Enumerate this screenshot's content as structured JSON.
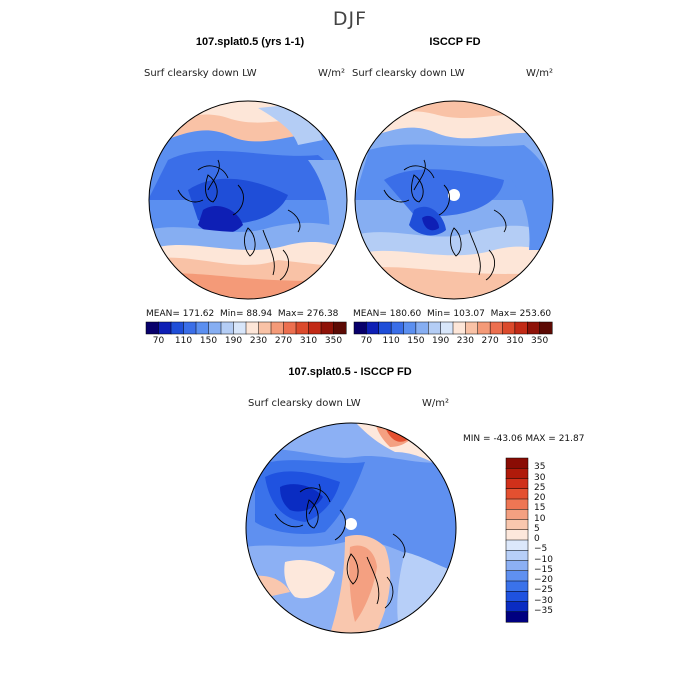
{
  "figure": {
    "season": "DJF",
    "colors": {
      "map_scale": [
        "#08006b",
        "#0e1fb5",
        "#1f4ed8",
        "#3a6ee8",
        "#5b8ff0",
        "#86aef2",
        "#b4cdf5",
        "#d8e6fa",
        "#fde6d8",
        "#f9c2a6",
        "#f49a78",
        "#ec6f4f",
        "#db4a2c",
        "#c22a16",
        "#8e1208",
        "#5c0a04"
      ],
      "diff_scale": [
        "#000080",
        "#0a2cc2",
        "#1f52e0",
        "#3a72ea",
        "#5f90f0",
        "#8cb0f4",
        "#b7cff8",
        "#dce8fb",
        "#fde8dc",
        "#f9c7ae",
        "#f4a081",
        "#ee7654",
        "#e45030",
        "#d0301a",
        "#b01a0a",
        "#8a0c04"
      ]
    },
    "panels": [
      {
        "id": "model",
        "title": "107.splat0.5 (yrs 1-1)",
        "variable": "Surf clearsky down LW",
        "units": "W/m²",
        "stats": {
          "mean_label": "MEAN=",
          "mean": "171.62",
          "min_label": "Min=",
          "min": "88.94",
          "max_label": "Max=",
          "max": "276.38"
        }
      },
      {
        "id": "obs",
        "title": "ISCCP FD",
        "variable": "Surf clearsky down LW",
        "units": "W/m²",
        "stats": {
          "mean_label": "MEAN=",
          "mean": "180.60",
          "min_label": "Min=",
          "min": "103.07",
          "max_label": "Max=",
          "max": "253.60"
        }
      }
    ],
    "top_colorbar_ticks": [
      "70",
      "110",
      "150",
      "190",
      "230",
      "270",
      "310",
      "350"
    ],
    "difference": {
      "title": "107.splat0.5 - ISCCP FD",
      "variable": "Surf clearsky down LW",
      "units": "W/m²",
      "min_label": "MIN =",
      "min": "-43.06",
      "max_label": "MAX =",
      "max": "21.87",
      "colorbar_ticks": [
        "35",
        "30",
        "25",
        "20",
        "15",
        "10",
        "5",
        "0",
        "−5",
        "−10",
        "−15",
        "−20",
        "−25",
        "−30",
        "−35"
      ]
    }
  }
}
